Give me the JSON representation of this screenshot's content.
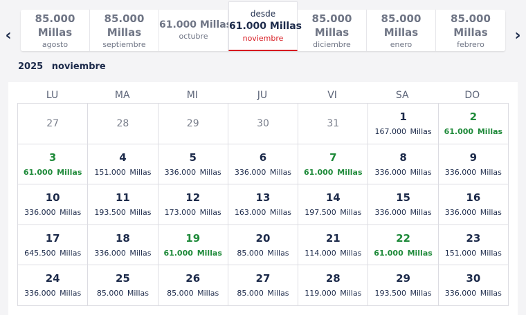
{
  "nav": {
    "prev_glyph": "‹",
    "next_glyph": "›"
  },
  "months": [
    {
      "amount": "85.000",
      "unit": "Millas",
      "name": "agosto"
    },
    {
      "amount": "85.000",
      "unit": "Millas",
      "name": "septiembre"
    },
    {
      "amount": "61.000  Millas",
      "name": "octubre"
    },
    {
      "from": "desde",
      "amount": "61.000  Millas",
      "name": "noviembre",
      "selected": true
    },
    {
      "amount": "85.000",
      "unit": "Millas",
      "name": "diciembre"
    },
    {
      "amount": "85.000",
      "unit": "Millas",
      "name": "enero"
    },
    {
      "amount": "85.000",
      "unit": "Millas",
      "name": "febrero"
    }
  ],
  "calendar": {
    "year": "2025",
    "month": "noviembre",
    "weekdays": [
      "LU",
      "MA",
      "MI",
      "JU",
      "VI",
      "SA",
      "DO"
    ],
    "cells": [
      {
        "day": "27",
        "out": true
      },
      {
        "day": "28",
        "out": true
      },
      {
        "day": "29",
        "out": true
      },
      {
        "day": "30",
        "out": true
      },
      {
        "day": "31",
        "out": true
      },
      {
        "day": "1",
        "price": "167.000 Millas"
      },
      {
        "day": "2",
        "price": "61.000 Millas",
        "green": true
      },
      {
        "day": "3",
        "price": "61.000 Millas",
        "green": true
      },
      {
        "day": "4",
        "price": "151.000 Millas"
      },
      {
        "day": "5",
        "price": "336.000 Millas"
      },
      {
        "day": "6",
        "price": "336.000 Millas"
      },
      {
        "day": "7",
        "price": "61.000 Millas",
        "green": true
      },
      {
        "day": "8",
        "price": "336.000 Millas"
      },
      {
        "day": "9",
        "price": "336.000 Millas"
      },
      {
        "day": "10",
        "price": "336.000 Millas"
      },
      {
        "day": "11",
        "price": "193.500 Millas"
      },
      {
        "day": "12",
        "price": "173.000 Millas"
      },
      {
        "day": "13",
        "price": "163.000 Millas"
      },
      {
        "day": "14",
        "price": "197.500 Millas"
      },
      {
        "day": "15",
        "price": "336.000 Millas"
      },
      {
        "day": "16",
        "price": "336.000 Millas"
      },
      {
        "day": "17",
        "price": "645.500 Millas"
      },
      {
        "day": "18",
        "price": "336.000 Millas"
      },
      {
        "day": "19",
        "price": "61.000 Millas",
        "green": true
      },
      {
        "day": "20",
        "price": "85.000 Millas"
      },
      {
        "day": "21",
        "price": "114.000 Millas"
      },
      {
        "day": "22",
        "price": "61.000 Millas",
        "green": true
      },
      {
        "day": "23",
        "price": "151.000 Millas"
      },
      {
        "day": "24",
        "price": "336.000 Millas"
      },
      {
        "day": "25",
        "price": "85.000 Millas"
      },
      {
        "day": "26",
        "price": "85.000 Millas"
      },
      {
        "day": "27",
        "price": "85.000 Millas"
      },
      {
        "day": "28",
        "price": "119.000 Millas"
      },
      {
        "day": "29",
        "price": "193.500 Millas"
      },
      {
        "day": "30",
        "price": "336.000 Millas"
      }
    ]
  },
  "colors": {
    "accent_red": "#d71920",
    "deal_green": "#1f8a3a",
    "text_navy": "#1c2a4a"
  }
}
